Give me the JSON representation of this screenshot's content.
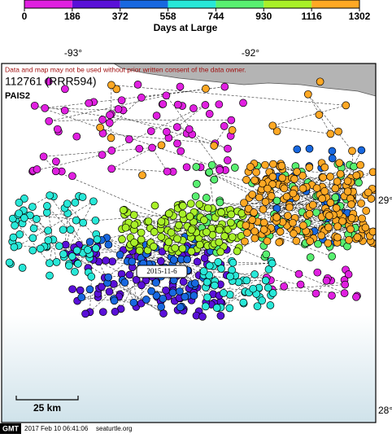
{
  "colorbar": {
    "ticks": [
      0,
      186,
      372,
      558,
      744,
      930,
      1116,
      1302
    ],
    "colors": [
      "#e020e0",
      "#5a10d8",
      "#1868e0",
      "#28e8d8",
      "#58f070",
      "#a8f028",
      "#ffa824"
    ],
    "label": "Days at Large"
  },
  "map": {
    "lon_labels": [
      "-93°",
      "-92°"
    ],
    "lat_labels": [
      "29°",
      "28°"
    ],
    "notice": "Data and map may not be used without prior written consent of the data owner.",
    "id": "112761 (RRR594)",
    "tag": "PAIS2",
    "date_label": "2015-11-6",
    "scale": "25 km"
  },
  "footer": {
    "logo": "GMT",
    "timestamp": "2017 Feb 10 06:41:06",
    "site": "seaturtle.org"
  }
}
